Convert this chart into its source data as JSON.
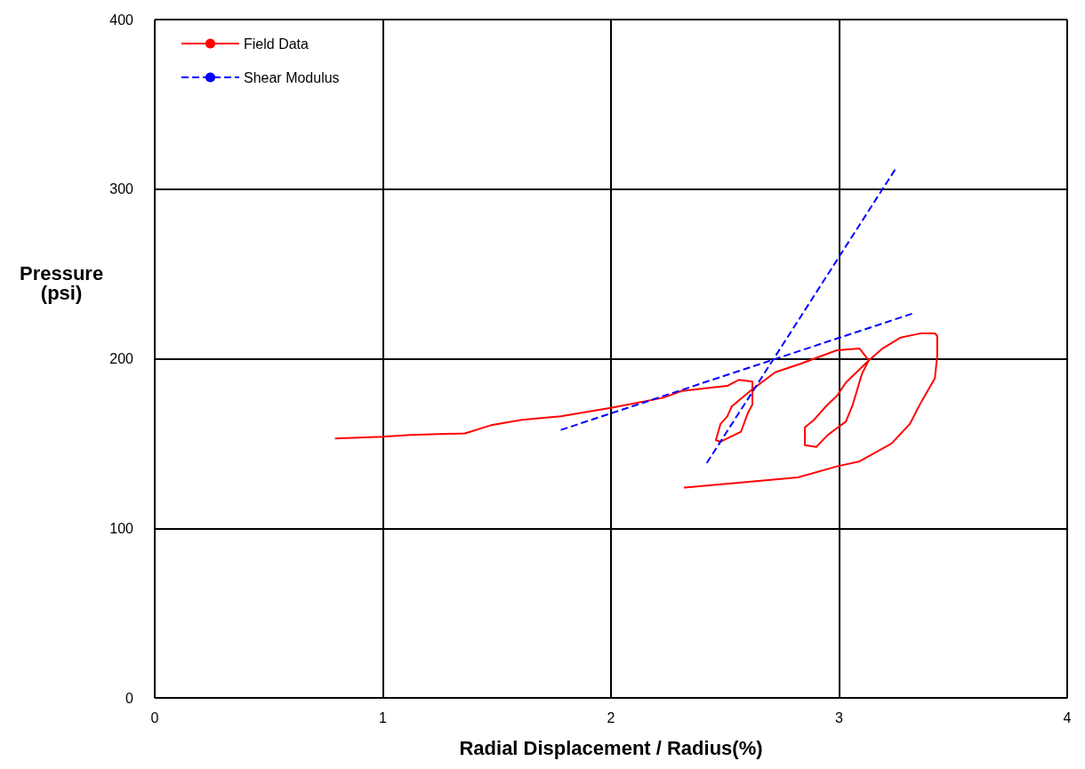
{
  "chart_data": {
    "type": "line",
    "xlabel": "Radial Displacement / Radius(%)",
    "ylabel": "Pressure\n(psi)",
    "xlim": [
      0,
      4
    ],
    "xticks": [
      0,
      1,
      2,
      3,
      4
    ],
    "ylim": [
      0,
      400
    ],
    "yticks": [
      0,
      100,
      200,
      300,
      400
    ],
    "grid": true,
    "legend": "top left",
    "marker": "none",
    "series": [
      {
        "name": "Field Data",
        "color": "#ff0000",
        "line_style": "solid",
        "x": [
          0.79,
          1.0,
          1.12,
          1.36,
          1.48,
          1.61,
          1.78,
          2.0,
          2.23,
          2.31,
          2.51,
          2.56,
          2.62,
          2.62,
          2.62,
          2.6,
          2.57,
          2.48,
          2.46,
          2.48,
          2.51,
          2.53,
          2.62,
          2.72,
          2.83,
          2.99,
          3.09,
          3.13,
          3.1,
          3.06,
          3.03,
          2.99,
          2.95,
          2.9,
          2.85,
          2.85,
          2.89,
          2.95,
          2.99,
          3.03,
          3.13,
          3.19,
          3.27,
          3.36,
          3.42,
          3.43,
          3.43,
          3.42,
          3.36,
          3.31,
          3.23,
          3.09,
          2.99,
          2.82,
          2.32
        ],
        "values": [
          153,
          154,
          155,
          156,
          161,
          164,
          166,
          171,
          177,
          181,
          184,
          187.5,
          186.5,
          181,
          173,
          168,
          157,
          151,
          152,
          161.5,
          166,
          172,
          182,
          192,
          197,
          205,
          206,
          199,
          191,
          173,
          163,
          159,
          155,
          148,
          149,
          159.5,
          164,
          173,
          178,
          186,
          199,
          206,
          212.5,
          215,
          215,
          213.5,
          201.5,
          188.5,
          174.5,
          161.5,
          150,
          139.5,
          136.5,
          130,
          124
        ]
      },
      {
        "name": "Shear Modulus",
        "color": "#0000ff",
        "line_style": "dashed",
        "x": [
          1.78,
          3.33
        ],
        "values": [
          158,
          227
        ]
      },
      {
        "color": "#0000ff",
        "line_style": "dashed",
        "x": [
          2.42,
          3.25
        ],
        "values": [
          138.5,
          312.5
        ]
      }
    ]
  }
}
